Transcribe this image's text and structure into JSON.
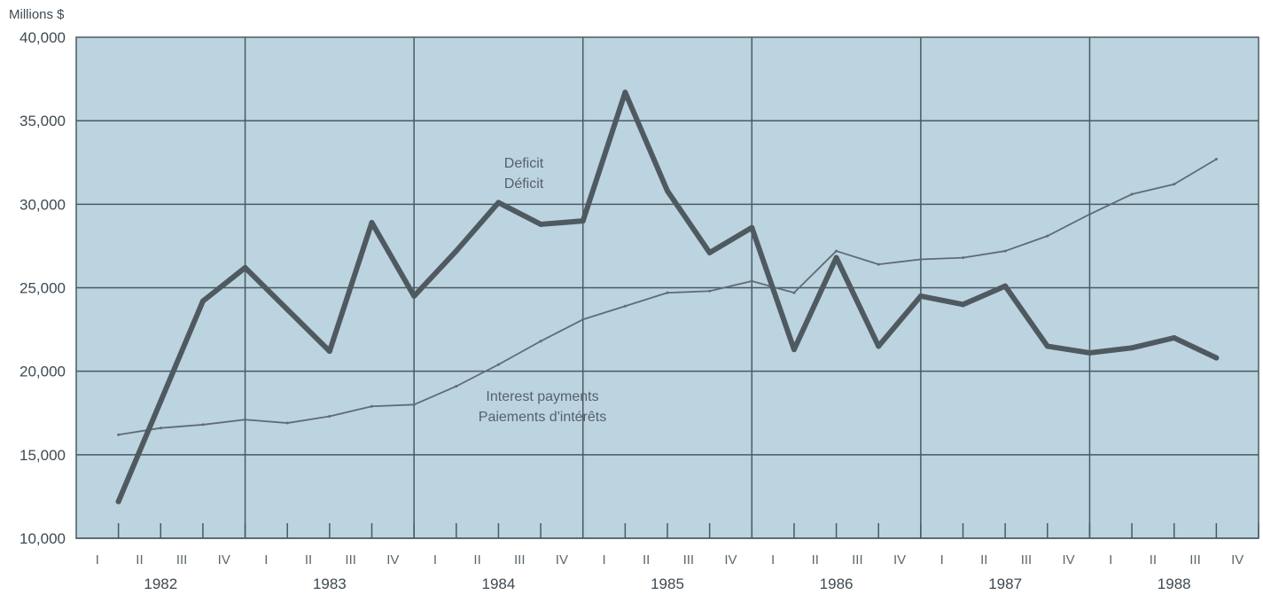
{
  "chart_data": {
    "type": "line",
    "unit_label": "Millions $",
    "ylim": [
      10000,
      40000
    ],
    "y_ticks": [
      {
        "value": 10000,
        "label": "10,000"
      },
      {
        "value": 15000,
        "label": "15,000"
      },
      {
        "value": 20000,
        "label": "20,000"
      },
      {
        "value": 25000,
        "label": "25,000"
      },
      {
        "value": 30000,
        "label": "30,000"
      },
      {
        "value": 35000,
        "label": "35,000"
      },
      {
        "value": 40000,
        "label": "40,000"
      }
    ],
    "years": [
      "1982",
      "1983",
      "1984",
      "1985",
      "1986",
      "1987",
      "1988"
    ],
    "quarters": [
      "I",
      "II",
      "III",
      "IV"
    ],
    "grid": true,
    "colors": {
      "plot_background": "#bcd3e0",
      "grid": "#4a5a62",
      "deficit_line": "#4f5a60",
      "interest_line": "#5f6c73"
    },
    "series": [
      {
        "name": "Deficit",
        "name_fr": "Déficit",
        "quarter_labels": [
          "1982 I",
          "1982 II",
          "1982 III",
          "1982 IV",
          "1983 I",
          "1983 II",
          "1983 III",
          "1983 IV",
          "1984 I",
          "1984 II",
          "1984 III",
          "1984 IV",
          "1985 I",
          "1985 II",
          "1985 III",
          "1985 IV",
          "1986 I",
          "1986 II",
          "1986 III",
          "1986 IV",
          "1987 I",
          "1987 II",
          "1987 III",
          "1987 IV",
          "1988 I",
          "1988 II",
          "1988 III"
        ],
        "values": [
          12200,
          18200,
          24200,
          26200,
          23700,
          21200,
          28900,
          24500,
          27200,
          30100,
          28800,
          29000,
          36700,
          30800,
          27100,
          28600,
          21300,
          26800,
          21500,
          24500,
          24000,
          25100,
          21500,
          21100,
          21400,
          22000,
          20800
        ]
      },
      {
        "name": "Interest payments",
        "name_fr": "Paiements d'intérêts",
        "quarter_labels": [
          "1982 I",
          "1982 II",
          "1982 III",
          "1982 IV",
          "1983 I",
          "1983 II",
          "1983 III",
          "1983 IV",
          "1984 I",
          "1984 II",
          "1984 III",
          "1984 IV",
          "1985 I",
          "1985 II",
          "1985 III",
          "1985 IV",
          "1986 I",
          "1986 II",
          "1986 III",
          "1986 IV",
          "1987 I",
          "1987 II",
          "1987 III",
          "1987 IV",
          "1988 I",
          "1988 II",
          "1988 III"
        ],
        "values": [
          16200,
          16600,
          16800,
          17100,
          16900,
          17300,
          17900,
          18000,
          19100,
          20400,
          21800,
          23100,
          23900,
          24700,
          24800,
          25400,
          24700,
          27200,
          26400,
          26700,
          26800,
          27200,
          28100,
          29400,
          30600,
          31200,
          32700
        ]
      }
    ]
  }
}
